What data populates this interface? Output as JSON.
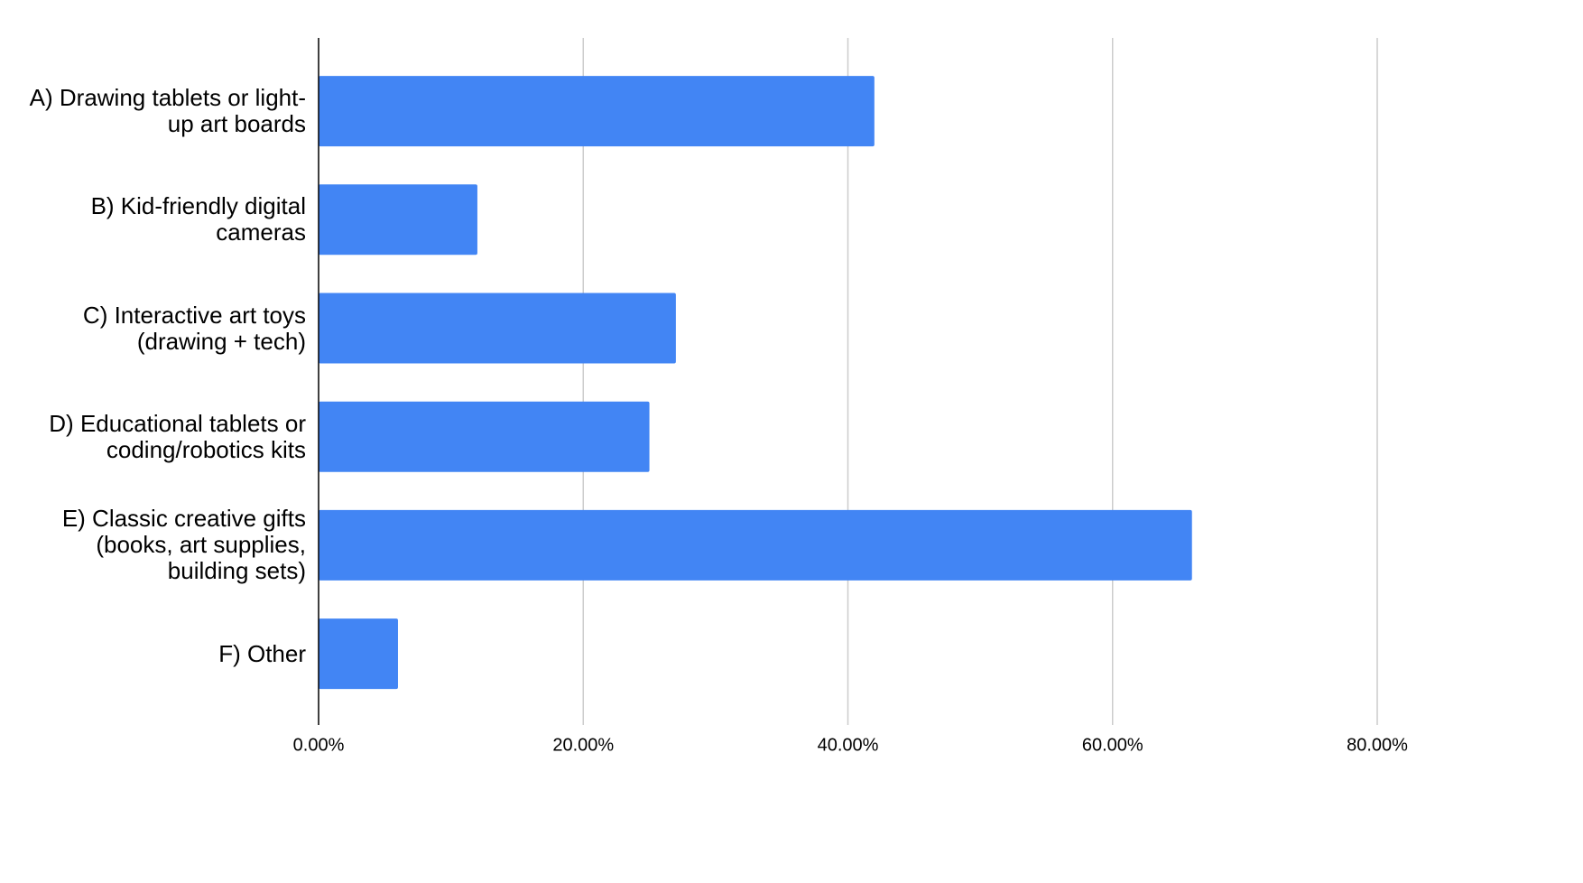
{
  "chart_data": {
    "type": "bar",
    "orientation": "horizontal",
    "categories": [
      "A) Drawing tablets or light-up art boards",
      "B) Kid-friendly digital cameras",
      "C) Interactive art toys (drawing + tech)",
      "D) Educational tablets or coding/robotics kits",
      "E) Classic creative gifts (books, art supplies, building sets)",
      "F) Other"
    ],
    "values": [
      42,
      12,
      27,
      25,
      66,
      6
    ],
    "color": "#4285f4",
    "xlim": [
      0,
      80
    ],
    "xticks": [
      {
        "value": 0,
        "label": "0.00%"
      },
      {
        "value": 20,
        "label": "20.00%"
      },
      {
        "value": 40,
        "label": "40.00%"
      },
      {
        "value": 60,
        "label": "60.00%"
      },
      {
        "value": 80,
        "label": "80.00%"
      }
    ],
    "grid": true
  }
}
